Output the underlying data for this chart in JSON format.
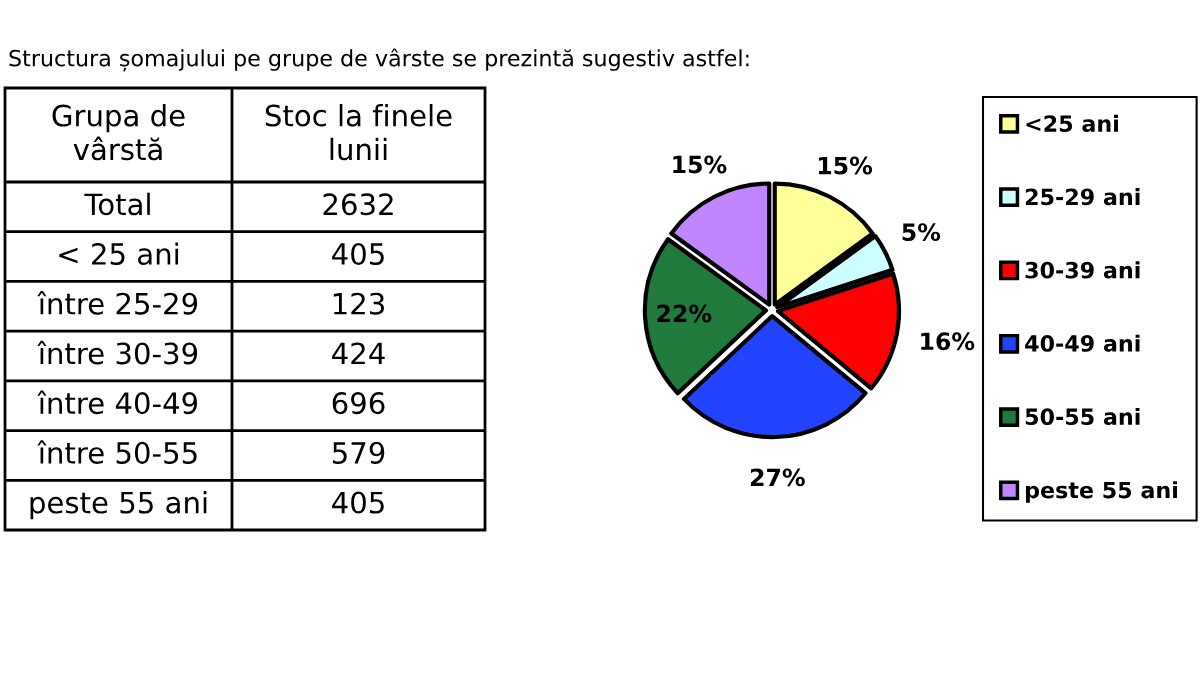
{
  "chart_data": [
    {
      "type": "other",
      "title": "Structura șomajului pe grupe de vârste se prezintă sugestiv astfel:",
      "ylabel": "Grupa de\nvârstă",
      "xlabel": "Stoc la finele\nlunii",
      "categories": [
        "Total",
        "< 25 ani",
        "între 25-29",
        "între 30-39",
        "între 40-49",
        "între 50-55",
        "peste 55 ani"
      ],
      "values": [
        2632,
        405,
        123,
        424,
        696,
        579,
        405
      ],
      "data_labels": true
    },
    {
      "type": "pie",
      "categories": [
        "<25 ani",
        "25-29 ani",
        "30-39 ani",
        "40-49 ani",
        "50-55 ani",
        "peste 55 ani"
      ],
      "values": [
        15,
        5,
        16,
        27,
        22,
        15
      ],
      "value_labels": [
        "15%",
        "5%",
        "16%",
        "27%",
        "22%",
        "15%"
      ],
      "colors": [
        "#ffff99",
        "#ccffff",
        "#ff0000",
        "#2244ff",
        "#1f7a3c",
        "#c285ff"
      ],
      "legend": "right"
    }
  ]
}
